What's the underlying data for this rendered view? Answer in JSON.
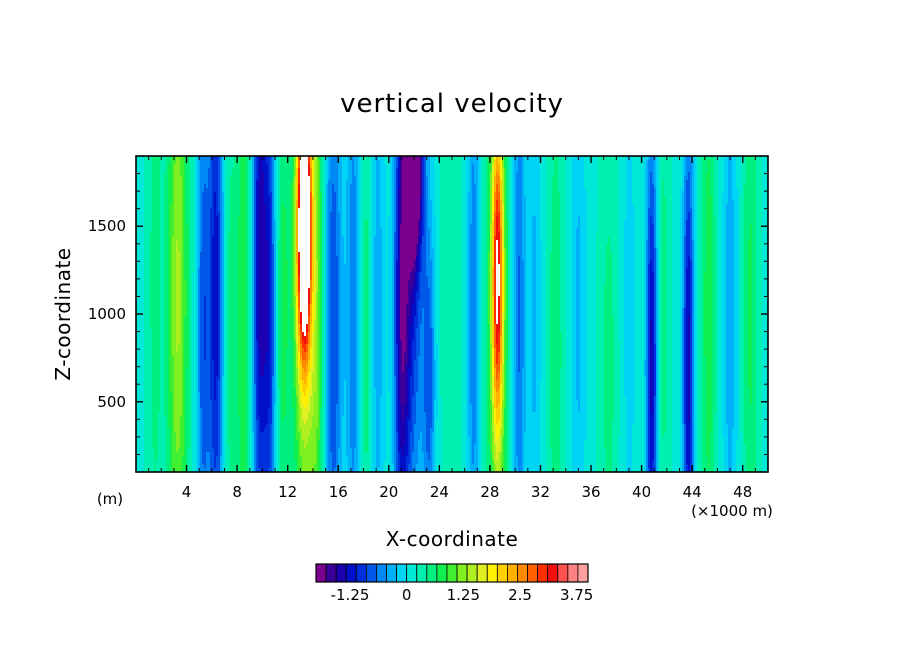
{
  "chart_data": {
    "type": "heatmap",
    "title": "vertical velocity",
    "xlabel": "X-coordinate",
    "ylabel": "Z-coordinate",
    "x_units_left": "(m)",
    "x_units_right": "(×1000 m)",
    "xlim": [
      0,
      50
    ],
    "ylim": [
      100,
      1900
    ],
    "x_ticks": [
      4,
      8,
      12,
      16,
      20,
      24,
      28,
      32,
      36,
      40,
      44,
      48
    ],
    "y_ticks": [
      500,
      1000,
      1500
    ],
    "colorbar": {
      "min": -2.0,
      "max": 4.0,
      "step": 0.25,
      "tick_values": [
        -1.25,
        0,
        1.25,
        2.5,
        3.75
      ],
      "tick_labels": [
        "-1.25",
        "0",
        "1.25",
        "2.5",
        "3.75"
      ],
      "colors": [
        "#7b0090",
        "#3c009a",
        "#1a00b0",
        "#0010c8",
        "#0030dc",
        "#0058e8",
        "#0088f4",
        "#00b0f8",
        "#00d4f4",
        "#00e8d8",
        "#00f0b0",
        "#00f080",
        "#10f050",
        "#40f030",
        "#80f020",
        "#b0f020",
        "#e0f020",
        "#fff000",
        "#ffd000",
        "#ffb000",
        "#ff8a00",
        "#ff6000",
        "#ff3000",
        "#f01010",
        "#ff5050",
        "#ff8080",
        "#ffa0a0"
      ]
    },
    "base_value": 0.45,
    "features": [
      {
        "x": 1.5,
        "width": 0.6,
        "amp": 0.4,
        "z_center": 1200,
        "z_spread": 2000
      },
      {
        "x": 3.3,
        "width": 0.8,
        "amp": 1.35,
        "z_center": 1100,
        "z_spread": 1800
      },
      {
        "x": 5.3,
        "width": 0.5,
        "amp": -1.1,
        "z_center": 900,
        "z_spread": 1600
      },
      {
        "x": 6.3,
        "width": 0.6,
        "amp": -1.6,
        "z_center": 1100,
        "z_spread": 1800
      },
      {
        "x": 7.4,
        "width": 0.5,
        "amp": 0.4,
        "z_center": 900,
        "z_spread": 1600
      },
      {
        "x": 8.5,
        "width": 0.6,
        "amp": 0.8,
        "z_center": 1000,
        "z_spread": 1800
      },
      {
        "x": 9.8,
        "width": 0.6,
        "amp": -1.8,
        "z_center": 1300,
        "z_spread": 1800
      },
      {
        "x": 10.6,
        "width": 0.5,
        "amp": -1.3,
        "z_center": 1000,
        "z_spread": 1600
      },
      {
        "x": 11.6,
        "width": 0.6,
        "amp": 0.6,
        "z_center": 1000,
        "z_spread": 1800
      },
      {
        "x": 13.3,
        "width": 0.55,
        "amp": 4.6,
        "z_center": 1500,
        "z_spread": 750
      },
      {
        "x": 13.3,
        "width": 0.9,
        "amp": 1.2,
        "z_center": 1100,
        "z_spread": 1800
      },
      {
        "x": 14.3,
        "width": 0.6,
        "amp": 0.9,
        "z_center": 1000,
        "z_spread": 1800
      },
      {
        "x": 15.6,
        "width": 0.7,
        "amp": -1.2,
        "z_center": 900,
        "z_spread": 1800
      },
      {
        "x": 17.2,
        "width": 0.6,
        "amp": -0.9,
        "z_center": 1000,
        "z_spread": 1800
      },
      {
        "x": 18.2,
        "width": 0.5,
        "amp": 0.5,
        "z_center": 900,
        "z_spread": 1600
      },
      {
        "x": 19.1,
        "width": 0.6,
        "amp": -0.6,
        "z_center": 1000,
        "z_spread": 1800
      },
      {
        "x": 21.0,
        "width": 0.6,
        "amp": -1.6,
        "z_center": 1000,
        "z_spread": 1600
      },
      {
        "x": 22.0,
        "width": 0.65,
        "amp": -2.9,
        "z_center": 1900,
        "z_spread": 550
      },
      {
        "x": 21.8,
        "width": 1.0,
        "amp": -1.3,
        "z_center": 1200,
        "z_spread": 1500
      },
      {
        "x": 23.2,
        "width": 0.5,
        "amp": -1.0,
        "z_center": 600,
        "z_spread": 1000
      },
      {
        "x": 25.0,
        "width": 0.8,
        "amp": 0.3,
        "z_center": 1000,
        "z_spread": 1800
      },
      {
        "x": 26.7,
        "width": 0.5,
        "amp": -0.9,
        "z_center": 1000,
        "z_spread": 1800
      },
      {
        "x": 28.6,
        "width": 0.45,
        "amp": 2.9,
        "z_center": 1200,
        "z_spread": 900
      },
      {
        "x": 28.6,
        "width": 0.9,
        "amp": 0.9,
        "z_center": 1000,
        "z_spread": 2000
      },
      {
        "x": 30.3,
        "width": 0.5,
        "amp": -1.0,
        "z_center": 1000,
        "z_spread": 1800
      },
      {
        "x": 31.5,
        "width": 0.6,
        "amp": -0.5,
        "z_center": 1000,
        "z_spread": 1800
      },
      {
        "x": 33.2,
        "width": 0.6,
        "amp": 0.5,
        "z_center": 800,
        "z_spread": 1600
      },
      {
        "x": 35.0,
        "width": 0.6,
        "amp": -0.5,
        "z_center": 1000,
        "z_spread": 1800
      },
      {
        "x": 37.4,
        "width": 0.7,
        "amp": 0.4,
        "z_center": 700,
        "z_spread": 1400
      },
      {
        "x": 39.0,
        "width": 0.6,
        "amp": -0.3,
        "z_center": 1000,
        "z_spread": 1800
      },
      {
        "x": 40.8,
        "width": 0.45,
        "amp": -1.8,
        "z_center": 700,
        "z_spread": 1400
      },
      {
        "x": 41.7,
        "width": 0.5,
        "amp": 0.4,
        "z_center": 1000,
        "z_spread": 1600
      },
      {
        "x": 43.7,
        "width": 0.45,
        "amp": -1.8,
        "z_center": 700,
        "z_spread": 1400
      },
      {
        "x": 45.3,
        "width": 0.6,
        "amp": 0.7,
        "z_center": 1000,
        "z_spread": 1800
      },
      {
        "x": 47.0,
        "width": 0.6,
        "amp": -0.6,
        "z_center": 1000,
        "z_spread": 1800
      },
      {
        "x": 48.6,
        "width": 0.6,
        "amp": 0.6,
        "z_center": 1000,
        "z_spread": 1800
      }
    ]
  }
}
